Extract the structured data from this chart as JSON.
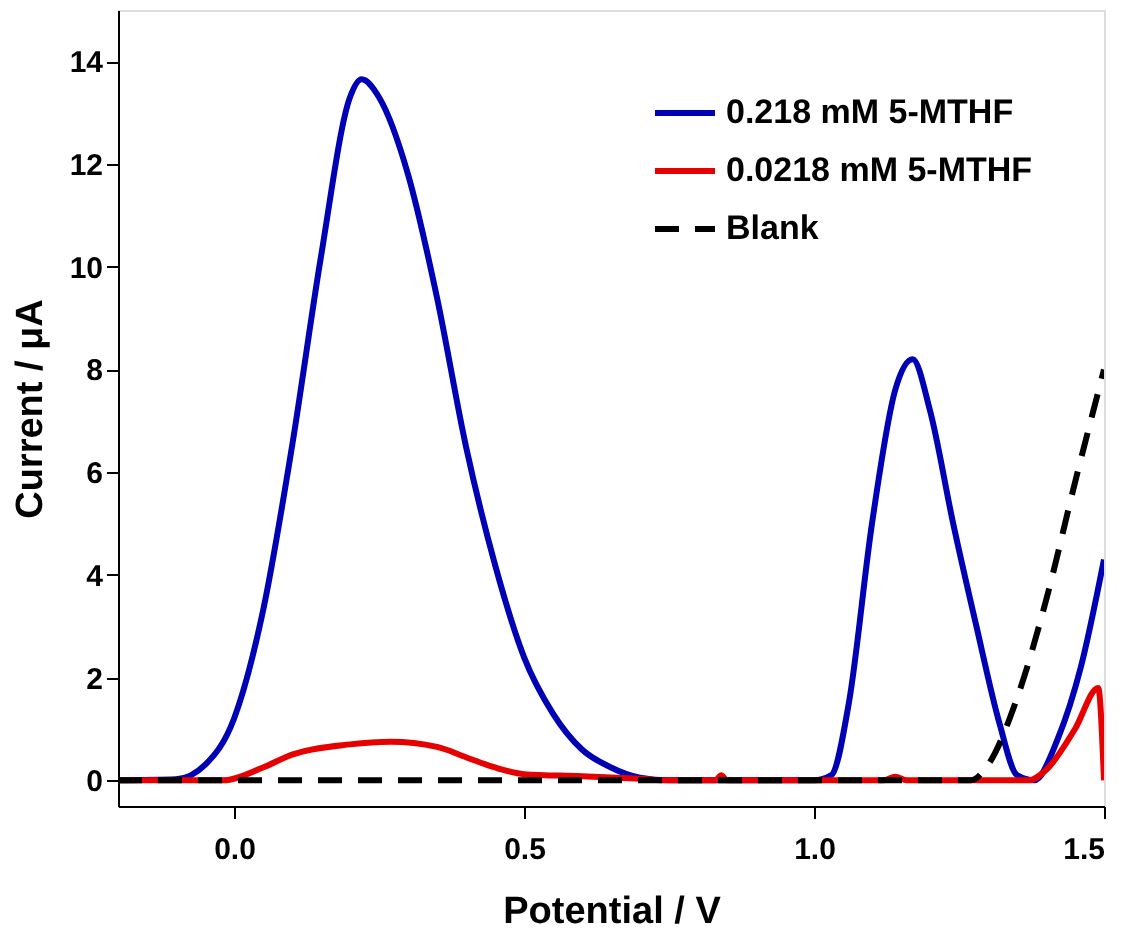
{
  "chart_data": {
    "type": "line",
    "xlabel": "Potential / V",
    "ylabel": "Current / μA",
    "xlim": [
      -0.2,
      1.5
    ],
    "xticks": [
      {
        "value": 0,
        "label": "0.0"
      },
      0.5,
      {
        "value": 1,
        "label": "1.0"
      },
      1.5
    ],
    "ylim": [
      -0.5,
      15
    ],
    "yticks": [
      0,
      2,
      4,
      6,
      8,
      10,
      12,
      14
    ],
    "grid": false,
    "legend": "top right",
    "marker": "none",
    "series": [
      {
        "name": "0.218 mM 5-MTHF",
        "color": "#0000b4",
        "line_style": "solid",
        "x": [
          -0.2,
          -0.1,
          -0.05,
          0.0,
          0.05,
          0.1,
          0.15,
          0.2,
          0.22,
          0.25,
          0.3,
          0.35,
          0.4,
          0.45,
          0.5,
          0.55,
          0.6,
          0.65,
          0.7,
          0.75,
          1.0,
          1.03,
          1.06,
          1.1,
          1.14,
          1.17,
          1.2,
          1.24,
          1.28,
          1.32,
          1.35,
          1.38,
          1.42,
          1.46,
          1.5
        ],
        "values": [
          0,
          0.02,
          0.3,
          1.2,
          3.3,
          6.5,
          10.2,
          13.3,
          13.65,
          13.3,
          11.8,
          9.4,
          6.5,
          4.2,
          2.4,
          1.3,
          0.6,
          0.25,
          0.05,
          0,
          0,
          0.1,
          1.5,
          5.0,
          7.6,
          8.2,
          7.2,
          5.0,
          3.0,
          1.1,
          0.1,
          0,
          0.8,
          2.2,
          4.3
        ]
      },
      {
        "name": "0.0218 mM 5-MTHF",
        "color": "#e60000",
        "line_style": "solid",
        "x": [
          -0.2,
          -0.02,
          0.05,
          0.1,
          0.2,
          0.27,
          0.35,
          0.4,
          0.45,
          0.5,
          0.6,
          0.7,
          0.75,
          0.83,
          0.84,
          0.85,
          1.12,
          1.14,
          1.16,
          1.37,
          1.4,
          1.45,
          1.49,
          1.5
        ],
        "values": [
          0,
          0,
          0.25,
          0.5,
          0.7,
          0.75,
          0.65,
          0.45,
          0.25,
          0.12,
          0.08,
          0.03,
          0,
          0,
          0.1,
          0,
          0,
          0.07,
          0,
          0,
          0.2,
          1.0,
          1.8,
          0
        ]
      },
      {
        "name": "Blank",
        "color": "#000000",
        "line_style": "dashed",
        "x": [
          -0.2,
          1.27,
          1.3,
          1.35,
          1.4,
          1.45,
          1.5
        ],
        "values": [
          0,
          0,
          0.3,
          1.6,
          3.5,
          5.8,
          8.0
        ]
      }
    ]
  }
}
